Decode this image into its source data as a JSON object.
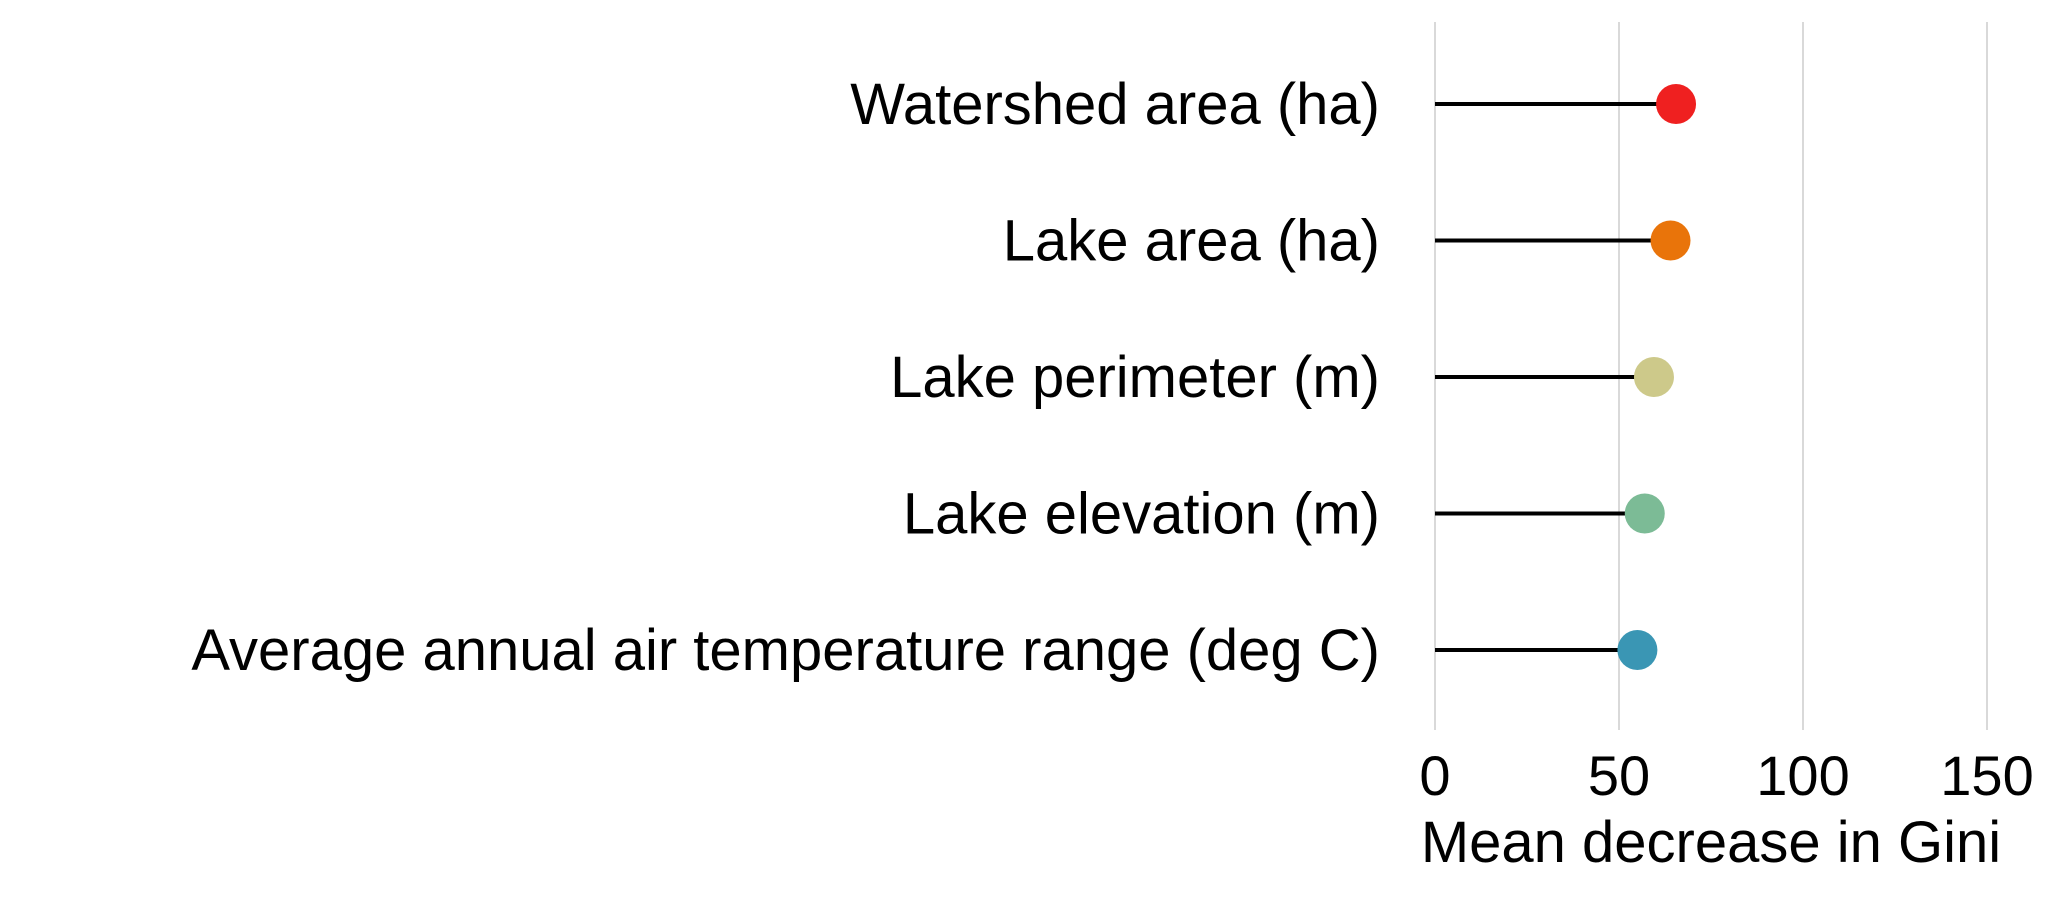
{
  "chart_data": {
    "type": "lollipop",
    "categories": [
      "Watershed area (ha)",
      "Lake area (ha)",
      "Lake perimeter (m)",
      "Lake elevation (m)",
      "Average annual air temperature range (deg C)"
    ],
    "values": [
      65.5,
      64,
      59.5,
      57,
      55
    ],
    "colors": [
      "#ef2020",
      "#e9740a",
      "#cdc98a",
      "#7cbb96",
      "#3a96b4"
    ],
    "xlabel": "Mean decrease in Gini",
    "ylabel": "",
    "title": "",
    "xlim": [
      0,
      150
    ],
    "xticks": [
      0,
      50,
      100,
      150
    ],
    "grid": "vertical",
    "legend": "none"
  }
}
